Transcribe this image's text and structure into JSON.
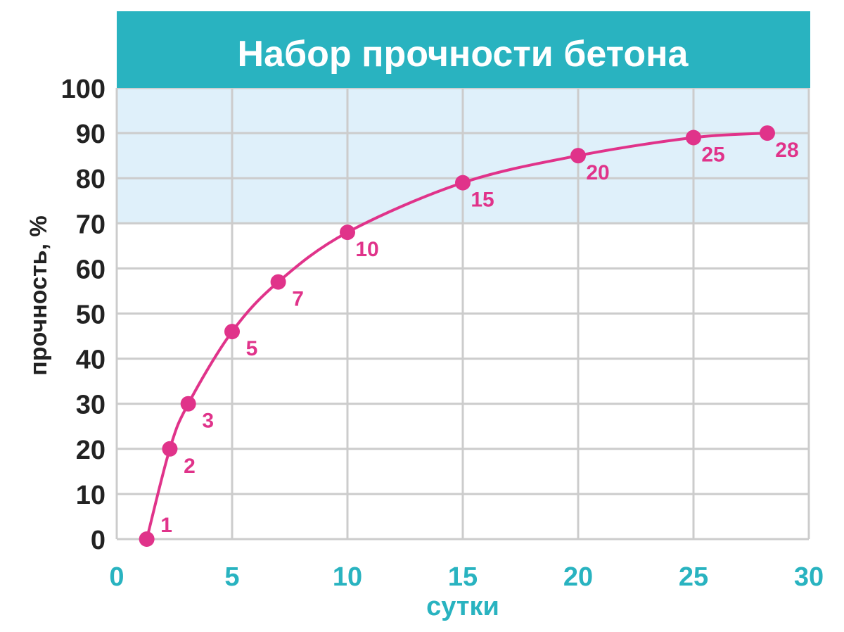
{
  "chart_data": {
    "type": "line",
    "title": "Набор прочности бетона",
    "xlabel": "сутки",
    "ylabel": "прочность, %",
    "xlim": [
      0,
      30
    ],
    "ylim": [
      0,
      100
    ],
    "x_ticks": [
      "0",
      "5",
      "10",
      "15",
      "20",
      "25",
      "30"
    ],
    "y_ticks": [
      "0",
      "10",
      "20",
      "30",
      "40",
      "50",
      "60",
      "70",
      "80",
      "90",
      "100"
    ],
    "grid": true,
    "highlight_band": {
      "from": 70,
      "to": 100
    },
    "series": [
      {
        "points": [
          {
            "x": 1.3,
            "y": 0,
            "label": "1"
          },
          {
            "x": 2.3,
            "y": 20,
            "label": "2"
          },
          {
            "x": 3.1,
            "y": 30,
            "label": "3"
          },
          {
            "x": 5,
            "y": 46,
            "label": "5"
          },
          {
            "x": 7,
            "y": 57,
            "label": "7"
          },
          {
            "x": 10,
            "y": 68,
            "label": "10"
          },
          {
            "x": 15,
            "y": 79,
            "label": "15"
          },
          {
            "x": 20,
            "y": 85,
            "label": "20"
          },
          {
            "x": 25,
            "y": 89,
            "label": "25"
          },
          {
            "x": 28.2,
            "y": 90,
            "label": "28"
          }
        ]
      }
    ],
    "colors": {
      "title_band": "#29b3c0",
      "highlight": "#dff0fa",
      "grid": "#cccccc",
      "line": "#e0338a",
      "x_axis_text": "#29b3c0",
      "y_axis_text": "#222222"
    }
  }
}
